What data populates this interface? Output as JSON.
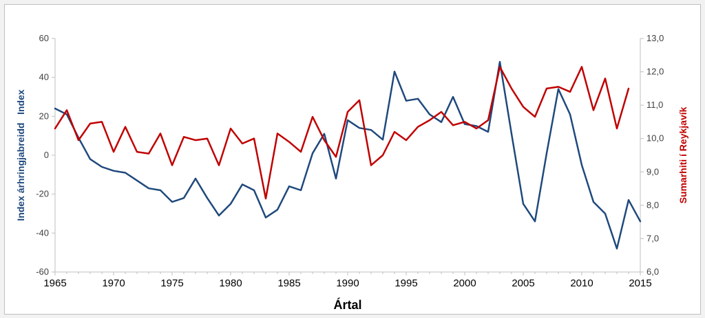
{
  "chart_data": {
    "type": "line",
    "title": "",
    "xlabel": "Ártal",
    "ylabel_left": "Index árhringjabreidd   Index",
    "ylabel_right": "Sumarhiti í Reykjavík",
    "xlim": [
      1965,
      2015
    ],
    "x_ticks": [
      "1965",
      "1970",
      "1975",
      "1980",
      "1985",
      "1990",
      "1995",
      "2000",
      "2005",
      "2010",
      "2015"
    ],
    "ylim_left": [
      -60,
      60
    ],
    "y_ticks_left": [
      "60",
      "40",
      "20",
      "0",
      "-20",
      "-40",
      "-60"
    ],
    "ylim_right": [
      6.0,
      13.0
    ],
    "y_ticks_right": [
      "13,0",
      "12,0",
      "11,0",
      "10,0",
      "9,0",
      "8,0",
      "7,0",
      "6,0"
    ],
    "grid": false,
    "colors": {
      "series_left": "#1f497d",
      "series_right": "#c00000",
      "axis": "#bfbfbf"
    },
    "series": [
      {
        "axis": "left",
        "x": [
          1965,
          1966,
          1967,
          1968,
          1969,
          1970,
          1971,
          1972,
          1973,
          1974,
          1975,
          1976,
          1977,
          1978,
          1979,
          1980,
          1981,
          1982,
          1983,
          1984,
          1985,
          1986,
          1987,
          1988,
          1989,
          1990,
          1991,
          1992,
          1993,
          1994,
          1995,
          1996,
          1997,
          1998,
          1999,
          2000,
          2001,
          2002,
          2003,
          2004,
          2005,
          2006,
          2007,
          2008,
          2009,
          2010,
          2011,
          2012,
          2013,
          2014,
          2015
        ],
        "values": [
          24,
          21,
          9,
          -2,
          -6,
          -8,
          -9,
          -13,
          -17,
          -18,
          -24,
          -22,
          -12,
          -22,
          -31,
          -25,
          -15,
          -18,
          -32,
          -28,
          -16,
          -18,
          1,
          11,
          -12,
          18,
          14,
          13,
          8,
          43,
          28,
          29,
          21,
          17,
          30,
          16,
          15,
          12,
          48,
          11,
          -25,
          -34,
          1,
          34,
          21,
          -5,
          -24,
          -30,
          -48,
          -23,
          -34
        ]
      },
      {
        "axis": "right",
        "x": [
          1965,
          1966,
          1967,
          1968,
          1969,
          1970,
          1971,
          1972,
          1973,
          1974,
          1975,
          1976,
          1977,
          1978,
          1979,
          1980,
          1981,
          1982,
          1983,
          1984,
          1985,
          1986,
          1987,
          1988,
          1989,
          1990,
          1991,
          1992,
          1993,
          1994,
          1995,
          1996,
          1997,
          1998,
          1999,
          2000,
          2001,
          2002,
          2003,
          2004,
          2005,
          2006,
          2007,
          2008,
          2009,
          2010,
          2011,
          2012,
          2013,
          2014
        ],
        "values": [
          10.3,
          10.85,
          9.95,
          10.45,
          10.5,
          9.6,
          10.35,
          9.6,
          9.55,
          10.15,
          9.2,
          10.05,
          9.95,
          10.0,
          9.2,
          10.3,
          9.85,
          10.0,
          8.2,
          10.15,
          9.9,
          9.6,
          10.65,
          9.95,
          9.45,
          10.8,
          11.15,
          9.2,
          9.5,
          10.2,
          9.95,
          10.35,
          10.55,
          10.8,
          10.4,
          10.5,
          10.3,
          10.55,
          12.15,
          11.5,
          10.95,
          10.65,
          11.5,
          11.55,
          11.4,
          12.15,
          10.85,
          11.8,
          10.3,
          11.5
        ]
      }
    ]
  }
}
